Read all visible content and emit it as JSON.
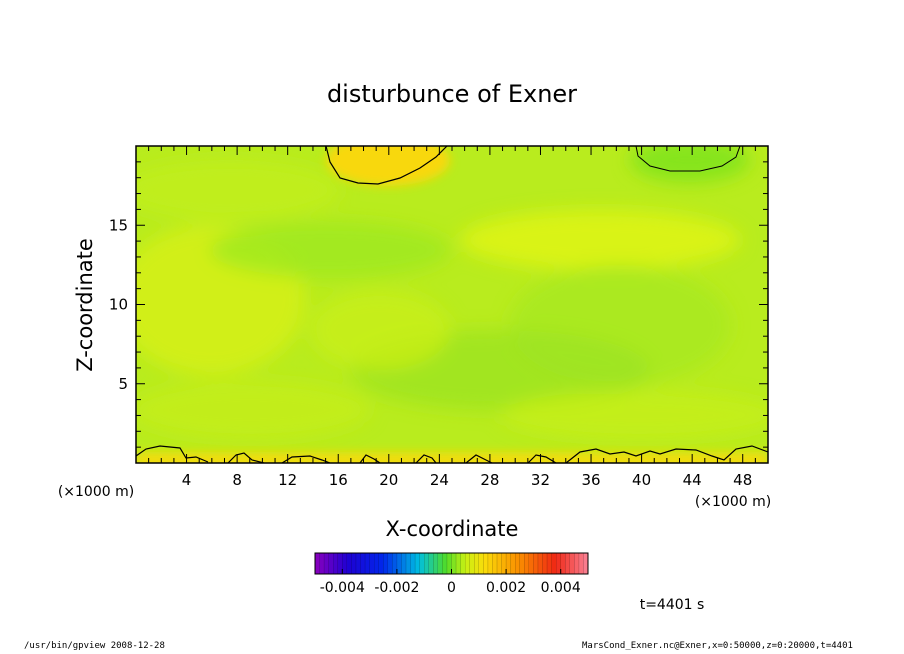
{
  "chart_data": {
    "type": "heatmap",
    "title": "disturbunce of Exner",
    "xlabel": "X-coordinate",
    "ylabel": "Z-coordinate",
    "x_unit": "(×1000 m)",
    "y_unit": "(×1000 m)",
    "xlim": [
      0,
      50
    ],
    "ylim": [
      0,
      20
    ],
    "x_ticks": [
      "4",
      "8",
      "12",
      "16",
      "20",
      "24",
      "28",
      "32",
      "36",
      "40",
      "44",
      "48"
    ],
    "y_ticks": [
      "5",
      "10",
      "15"
    ],
    "colorbar": {
      "range": [
        -0.005,
        0.005
      ],
      "tick_labels": [
        "-0.004",
        "-0.002",
        "0",
        "0.002",
        "0.004"
      ],
      "tick_values": [
        -0.004,
        -0.002,
        0,
        0.002,
        0.004
      ]
    },
    "field_description_values": {
      "background": 0.0004,
      "warm_patch_top_center": 0.0012,
      "surface_layer": 0.0011,
      "cool_patch_top_right": -0.0002
    },
    "time_label": "t=4401 s"
  },
  "footer": {
    "left": "/usr/bin/gpview   2008-12-28",
    "right": "MarsCond_Exner.nc@Exner,x=0:50000,z=0:20000,t=4401"
  }
}
